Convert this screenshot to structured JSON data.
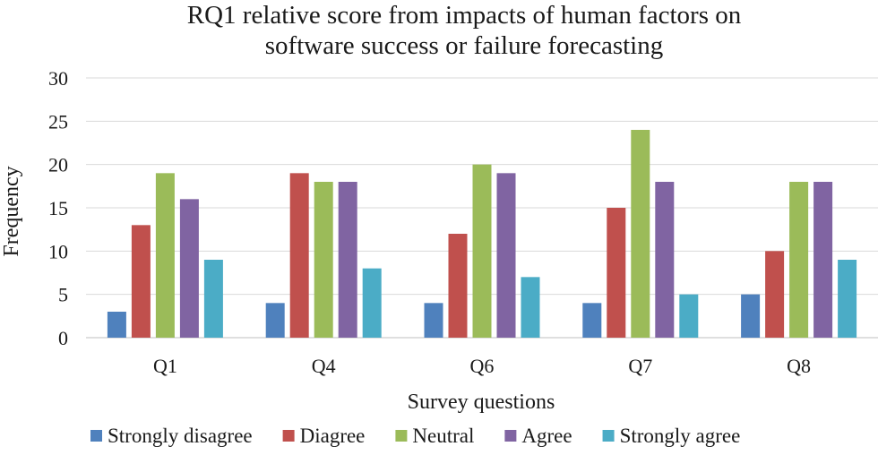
{
  "chart_data": {
    "type": "bar",
    "title_lines": [
      "RQ1 relative score from impacts of human factors on",
      "software success or failure forecasting"
    ],
    "xlabel": "Survey questions",
    "ylabel": "Frequency",
    "ylim": [
      0,
      30
    ],
    "yticks": [
      "0",
      "5",
      "10",
      "15",
      "20",
      "25",
      "30"
    ],
    "grid": true,
    "legend_position": "bottom",
    "categories": [
      "Q1",
      "Q4",
      "Q6",
      "Q7",
      "Q8"
    ],
    "series": [
      {
        "name": "Strongly disagree",
        "color": "#4f81bd",
        "values": [
          3,
          4,
          4,
          4,
          5
        ]
      },
      {
        "name": "Diagree",
        "color": "#c0504d",
        "values": [
          13,
          19,
          12,
          15,
          10
        ]
      },
      {
        "name": "Neutral",
        "color": "#9bbb59",
        "values": [
          19,
          18,
          20,
          24,
          18
        ]
      },
      {
        "name": "Agree",
        "color": "#8064a2",
        "values": [
          16,
          18,
          19,
          18,
          18
        ]
      },
      {
        "name": "Strongly agree",
        "color": "#4bacc6",
        "values": [
          9,
          8,
          7,
          5,
          9
        ]
      }
    ]
  }
}
